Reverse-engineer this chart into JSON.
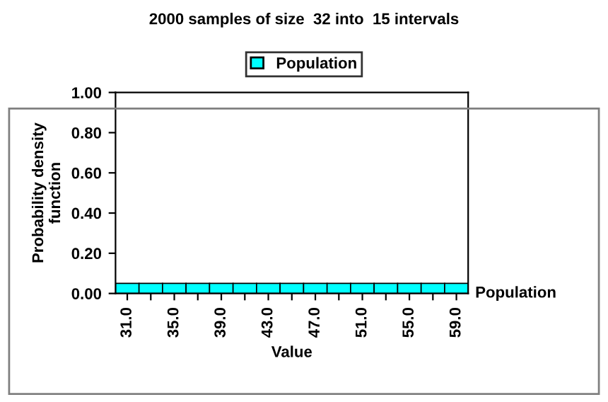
{
  "chart_data": {
    "type": "bar",
    "title": "2000 samples of size  32 into  15 intervals",
    "xlabel": "Value",
    "ylabel": "Probability density\nfunction",
    "categories": [
      "31.0",
      null,
      "35.0",
      null,
      "39.0",
      null,
      "43.0",
      null,
      "47.0",
      null,
      "51.0",
      null,
      "55.0",
      null,
      "59.0"
    ],
    "series": [
      {
        "name": "Population",
        "color": "#00ffff",
        "values": [
          0.05,
          0.05,
          0.05,
          0.05,
          0.05,
          0.05,
          0.05,
          0.05,
          0.05,
          0.05,
          0.05,
          0.05,
          0.05,
          0.05,
          0.05
        ]
      }
    ],
    "ylim": [
      0,
      1
    ],
    "yticks": [
      {
        "value": 0,
        "label": "0.00"
      },
      {
        "value": 0.2,
        "label": "0.20"
      },
      {
        "value": 0.4,
        "label": "0.40"
      },
      {
        "value": 0.6,
        "label": "0.60"
      },
      {
        "value": 0.8,
        "label": "0.80"
      },
      {
        "value": 1,
        "label": "1.00"
      }
    ],
    "legend": "top",
    "grid": false
  }
}
